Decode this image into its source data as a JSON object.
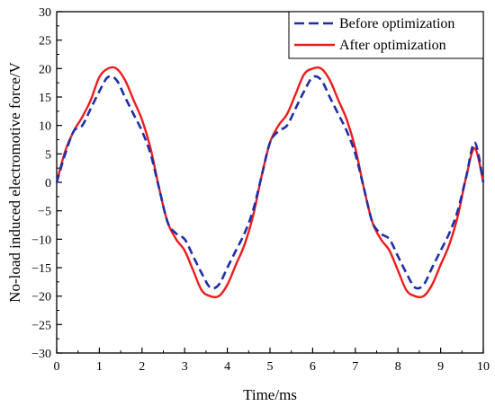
{
  "chart_data": {
    "type": "line",
    "xlabel": "Time/ms",
    "ylabel": "No-load induced electromotive force/V",
    "xlim": [
      0,
      10
    ],
    "ylim": [
      -30,
      30
    ],
    "xticks": [
      "0",
      "1",
      "2",
      "3",
      "4",
      "5",
      "6",
      "7",
      "8",
      "9",
      "10"
    ],
    "yticks": [
      "30",
      "25",
      "20",
      "15",
      "10",
      "5",
      "0",
      "−5",
      "−10",
      "−15",
      "−20",
      "−25",
      "−30"
    ],
    "grid": false,
    "legend_position": "top-right",
    "series": [
      {
        "name": "Before optimization",
        "style": "dashed",
        "color": "#1f2fa8",
        "x": [
          0,
          0.2,
          0.4,
          0.6,
          0.8,
          1.0,
          1.2,
          1.4,
          1.6,
          1.8,
          2.0,
          2.2,
          2.4,
          2.6,
          2.8,
          3.0,
          3.2,
          3.4,
          3.6,
          3.8,
          4.0,
          4.2,
          4.4,
          4.6,
          4.8,
          5.0,
          5.2,
          5.4,
          5.6,
          5.8,
          6.0,
          6.2,
          6.4,
          6.6,
          6.8,
          7.0,
          7.2,
          7.4,
          7.6,
          7.8,
          8.0,
          8.2,
          8.4,
          8.6,
          8.8,
          9.0,
          9.2,
          9.4,
          9.6,
          9.8,
          10.0
        ],
        "y": [
          0,
          5,
          9,
          10,
          13,
          16,
          18.5,
          18,
          15,
          12,
          9,
          5,
          -1,
          -7,
          -9,
          -10,
          -13,
          -16,
          -18.5,
          -18,
          -15,
          -12,
          -9,
          -5,
          1,
          7,
          9,
          10,
          13,
          16,
          18.5,
          18,
          15,
          12,
          9,
          5,
          -1,
          -7,
          -9,
          -10,
          -13,
          -16,
          -18.5,
          -18,
          -15,
          -12,
          -9,
          -5,
          1,
          7,
          0
        ]
      },
      {
        "name": "After optimization",
        "style": "solid",
        "color": "#ee1c1c",
        "x": [
          0,
          0.2,
          0.4,
          0.6,
          0.8,
          1.0,
          1.2,
          1.4,
          1.6,
          1.8,
          2.0,
          2.2,
          2.4,
          2.6,
          2.8,
          3.0,
          3.2,
          3.4,
          3.6,
          3.8,
          4.0,
          4.2,
          4.4,
          4.6,
          4.8,
          5.0,
          5.2,
          5.4,
          5.6,
          5.8,
          6.0,
          6.2,
          6.4,
          6.6,
          6.8,
          7.0,
          7.2,
          7.4,
          7.6,
          7.8,
          8.0,
          8.2,
          8.4,
          8.6,
          8.8,
          9.0,
          9.2,
          9.4,
          9.6,
          9.8,
          10.0
        ],
        "y": [
          0,
          5.5,
          9,
          11.5,
          14.5,
          18.5,
          20,
          20,
          18,
          14.5,
          11,
          6,
          -1,
          -7,
          -10,
          -12,
          -15.5,
          -19,
          -20,
          -20,
          -18,
          -14.5,
          -11,
          -6,
          1,
          7,
          10,
          12,
          15.5,
          19,
          20,
          20,
          18,
          14.5,
          11,
          6,
          -1,
          -7,
          -10,
          -12,
          -15.5,
          -19,
          -20,
          -20,
          -18,
          -14.5,
          -11,
          -6,
          1,
          6,
          0
        ]
      }
    ]
  }
}
